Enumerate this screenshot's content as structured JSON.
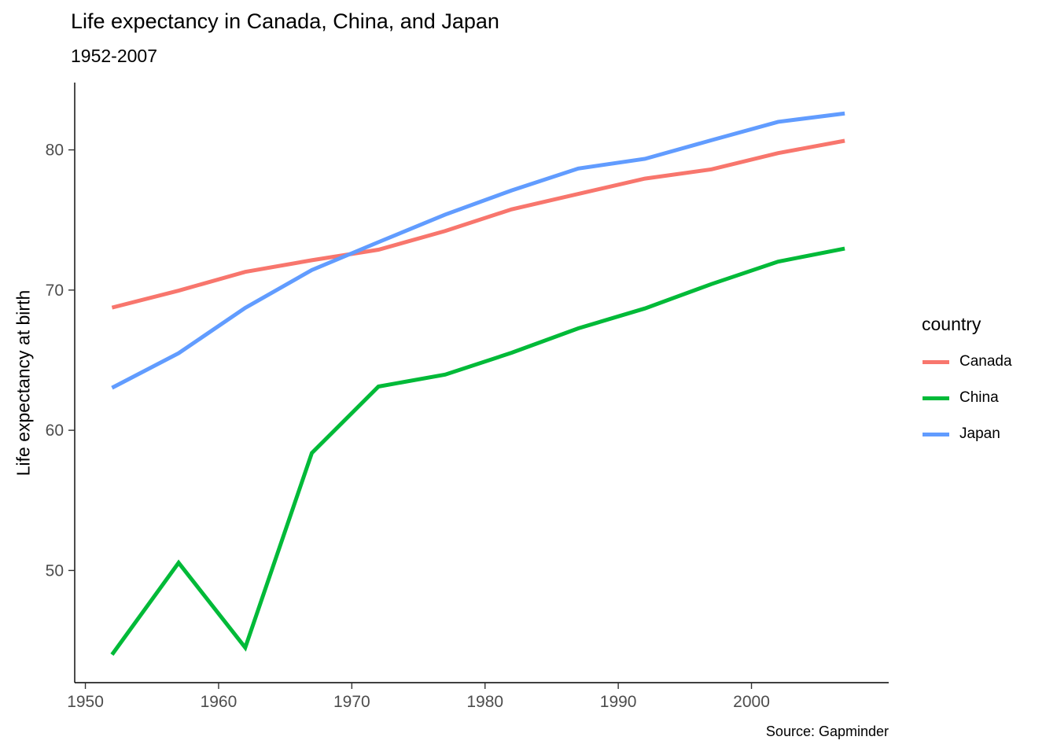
{
  "chart_data": {
    "type": "line",
    "title": "Life expectancy in Canada, China, and Japan",
    "subtitle": "1952-2007",
    "caption": "Source: Gapminder",
    "xlabel": "",
    "ylabel": "Life expectancy at birth",
    "legend_title": "country",
    "legend_position": "right",
    "grid": false,
    "background": "#ffffff",
    "axis_color": "#000000",
    "tick_label_color": "#4d4d4d",
    "x": [
      1952,
      1957,
      1962,
      1967,
      1972,
      1977,
      1982,
      1987,
      1992,
      1997,
      2002,
      2007
    ],
    "series": [
      {
        "name": "Canada",
        "color": "#F8766D",
        "values": [
          68.75,
          69.96,
          71.3,
          72.13,
          72.88,
          74.21,
          75.76,
          76.86,
          77.95,
          78.61,
          79.77,
          80.65
        ]
      },
      {
        "name": "China",
        "color": "#00BA38",
        "values": [
          44.0,
          50.55,
          44.5,
          58.38,
          63.12,
          63.97,
          65.53,
          67.27,
          68.69,
          70.43,
          72.03,
          72.96
        ]
      },
      {
        "name": "Japan",
        "color": "#619CFF",
        "values": [
          63.03,
          65.5,
          68.73,
          71.43,
          73.42,
          75.38,
          77.11,
          78.67,
          79.36,
          80.69,
          82.0,
          82.6
        ]
      }
    ],
    "x_ticks": [
      1950,
      1960,
      1970,
      1980,
      1990,
      2000
    ],
    "y_ticks": [
      50,
      60,
      70,
      80
    ],
    "xlim": [
      1949.2,
      2010.3
    ],
    "ylim": [
      42.0,
      84.8
    ]
  }
}
